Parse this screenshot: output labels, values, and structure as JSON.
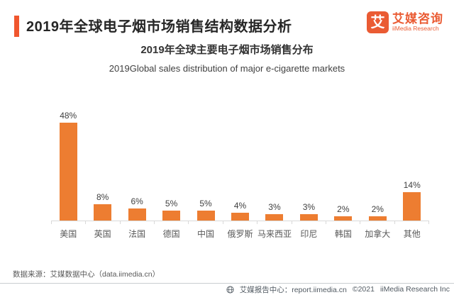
{
  "header": {
    "title": "2019年全球电子烟市场销售结构数据分析",
    "accent_color": "#F0562E",
    "logo": {
      "mark": "艾",
      "brand_cn": "艾媒咨询",
      "brand_en": "iiMedia Research",
      "color": "#EA5B33"
    }
  },
  "chart_data": {
    "type": "bar",
    "title": "2019年全球主要电子烟市场销售分布",
    "subtitle": "2019Global sales distribution of major e-cigarette markets",
    "categories": [
      "美国",
      "英国",
      "法国",
      "德国",
      "中国",
      "俄罗斯",
      "马来西亚",
      "印尼",
      "韩国",
      "加拿大",
      "其他"
    ],
    "values": [
      48,
      8,
      6,
      5,
      5,
      4,
      3,
      3,
      2,
      2,
      14
    ],
    "value_labels": [
      "48%",
      "8%",
      "6%",
      "5%",
      "5%",
      "4%",
      "3%",
      "3%",
      "2%",
      "2%",
      "14%"
    ],
    "xlabel": "",
    "ylabel": "",
    "ylim": [
      0,
      50
    ],
    "grid": false,
    "legend": "none",
    "bar_color": "#ED7D31",
    "axis_color": "#D9D9D9",
    "value_label_position": "above-bars"
  },
  "source_note": "数据来源：艾媒数据中心（data.iimedia.cn）",
  "footer": {
    "report_center": "艾媒报告中心：report.iimedia.cn",
    "copyright": "©2021",
    "company": "iiMedia Research Inc"
  }
}
